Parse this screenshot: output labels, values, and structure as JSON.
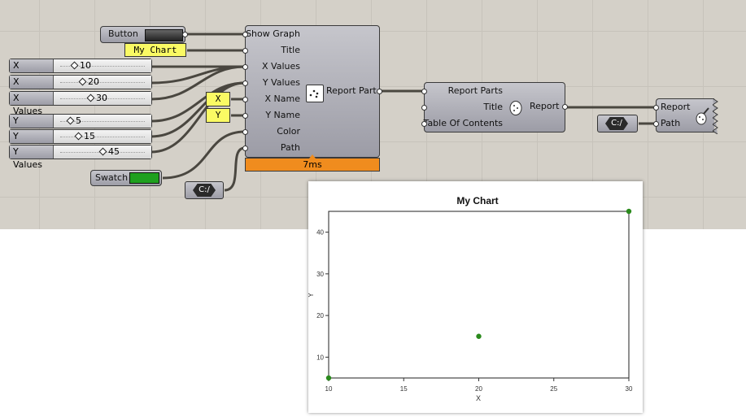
{
  "canvas": {
    "button_node": {
      "label": "Button"
    },
    "title_panel": {
      "text": "My Chart"
    },
    "x_values": [
      {
        "label": "X Values",
        "value": "10",
        "fraction": 0.1
      },
      {
        "label": "X Values",
        "value": "20",
        "fraction": 0.2
      },
      {
        "label": "X Values",
        "value": "30",
        "fraction": 0.3
      }
    ],
    "y_values": [
      {
        "label": "Y Values",
        "value": "5",
        "fraction": 0.05
      },
      {
        "label": "Y Values",
        "value": "15",
        "fraction": 0.15
      },
      {
        "label": "Y Values",
        "value": "45",
        "fraction": 0.45
      }
    ],
    "swatch": {
      "label": "Swatch",
      "color": "#1fa01f"
    },
    "path_node": {
      "label": "C:/"
    },
    "x_panel": {
      "text": "X"
    },
    "y_panel": {
      "text": "Y"
    },
    "report_part": {
      "inputs": [
        "Show Graph",
        "Title",
        "X Values",
        "Y Values",
        "X Name",
        "Y Name",
        "Color",
        "Path"
      ],
      "output": "Report Part",
      "timing": "7ms"
    },
    "report_parts": {
      "inputs": [
        "Report Parts",
        "Title",
        "Table Of Contents"
      ],
      "output": "Report"
    },
    "path_node2": {
      "label": "C:/"
    },
    "report_output": {
      "inputs": [
        "Report",
        "Path"
      ]
    }
  },
  "colors": {
    "canvas_bg": "#d4d0c8",
    "wire": "#4a4740",
    "timing_bar": "#f08c1e",
    "point": "#2a8a1c"
  },
  "chart_data": {
    "type": "scatter",
    "title": "My Chart",
    "xlabel": "X",
    "ylabel": "Y",
    "x": [
      10,
      20,
      30
    ],
    "y": [
      5,
      15,
      45
    ],
    "xlim": [
      10,
      30
    ],
    "ylim": [
      5,
      45
    ],
    "xticks": [
      10,
      15,
      20,
      25,
      30
    ],
    "yticks": [
      10,
      20,
      30,
      40
    ],
    "grid": false
  }
}
